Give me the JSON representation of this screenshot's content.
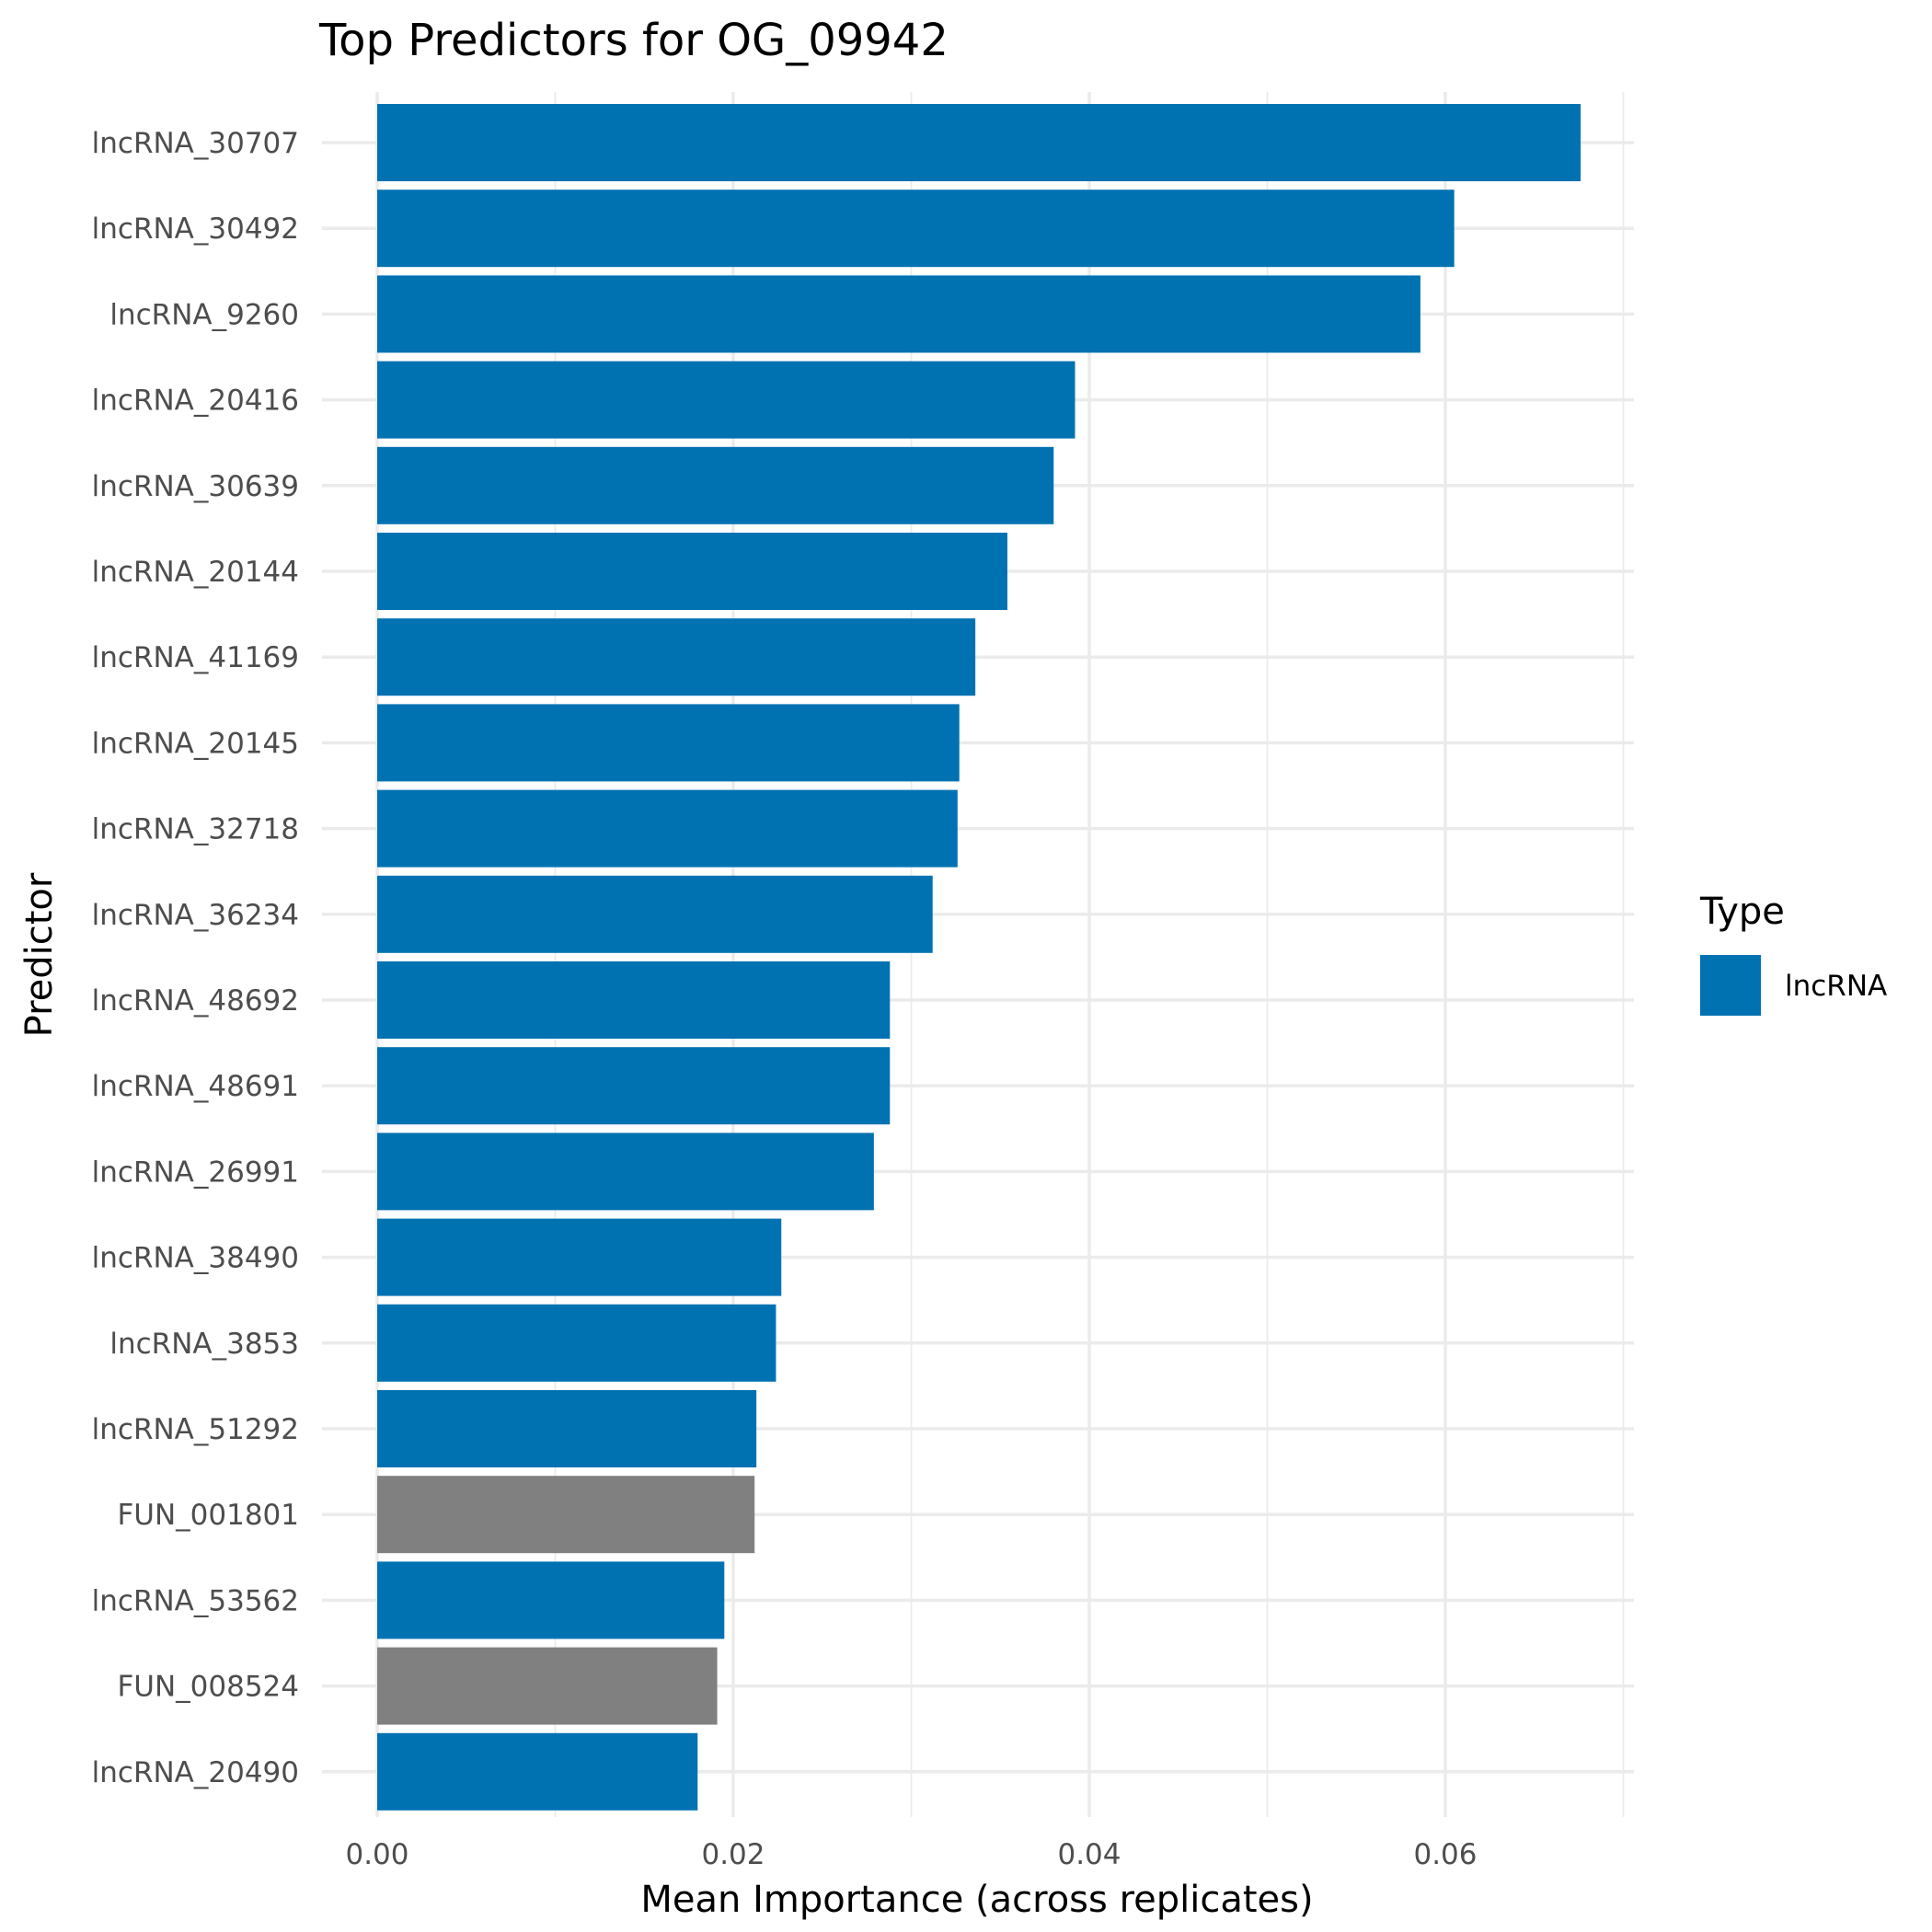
{
  "chart_data": {
    "type": "bar",
    "orientation": "horizontal",
    "title": "Top Predictors for OG_09942",
    "xlabel": "Mean Importance (across replicates)",
    "ylabel": "Predictor",
    "xlim": [
      0,
      0.07
    ],
    "x_ticks": [
      0.0,
      0.02,
      0.04,
      0.06
    ],
    "x_tick_labels": [
      "0.00",
      "0.02",
      "0.04",
      "0.06"
    ],
    "grid": true,
    "legend": {
      "title": "Type",
      "position": "right",
      "entries": [
        {
          "label": "lncRNA",
          "color": "#0072B2"
        }
      ]
    },
    "type_colors": {
      "lncRNA": "#0072B2",
      "FUN": "#808080"
    },
    "categories": [
      "lncRNA_30707",
      "lncRNA_30492",
      "lncRNA_9260",
      "lncRNA_20416",
      "lncRNA_30639",
      "lncRNA_20144",
      "lncRNA_41169",
      "lncRNA_20145",
      "lncRNA_32718",
      "lncRNA_36234",
      "lncRNA_48692",
      "lncRNA_48691",
      "lncRNA_26991",
      "lncRNA_38490",
      "lncRNA_3853",
      "lncRNA_51292",
      "FUN_001801",
      "lncRNA_53562",
      "FUN_008524",
      "lncRNA_20490"
    ],
    "values": [
      0.0676,
      0.0605,
      0.0586,
      0.0392,
      0.038,
      0.0354,
      0.0336,
      0.0327,
      0.0326,
      0.0312,
      0.0288,
      0.0288,
      0.0279,
      0.0227,
      0.0224,
      0.0213,
      0.0212,
      0.0195,
      0.0191,
      0.018
    ],
    "types": [
      "lncRNA",
      "lncRNA",
      "lncRNA",
      "lncRNA",
      "lncRNA",
      "lncRNA",
      "lncRNA",
      "lncRNA",
      "lncRNA",
      "lncRNA",
      "lncRNA",
      "lncRNA",
      "lncRNA",
      "lncRNA",
      "lncRNA",
      "lncRNA",
      "FUN",
      "lncRNA",
      "FUN",
      "lncRNA"
    ]
  }
}
